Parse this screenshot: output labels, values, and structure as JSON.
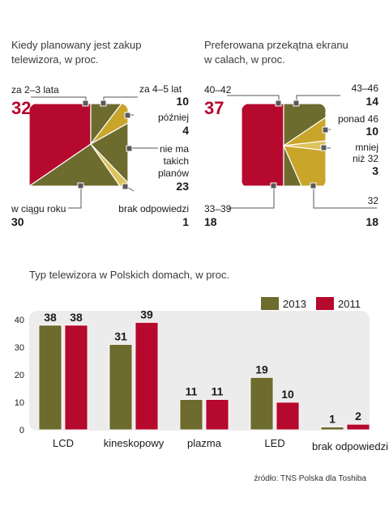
{
  "colors": {
    "olive": "#6e6b2e",
    "red": "#b5092d",
    "gold": "#c9a52a",
    "gold_light": "#dcc25a",
    "panel": "#ececec"
  },
  "source": "źródło: TNS Polska dla Toshiba",
  "chart_data": [
    {
      "type": "pie",
      "title": "Kiedy planowany jest zakup telewizora, w proc.",
      "title_lines": [
        "Kiedy planowany jest zakup",
        "telewizora, w proc."
      ],
      "slices": [
        {
          "label": "za 2–3 lata",
          "value": 32,
          "display": "32"
        },
        {
          "label": "za 4–5 lat",
          "value": 10,
          "display": "10"
        },
        {
          "label": "później",
          "value": 4,
          "display": "4"
        },
        {
          "label": "nie ma takich planów",
          "label_lines": [
            "nie ma",
            "takich",
            "planów"
          ],
          "value": 23,
          "display": "23"
        },
        {
          "label": "brak odpowiedzi",
          "value": 1,
          "display": "1"
        },
        {
          "label": "w ciągu roku",
          "value": 30,
          "display": "30"
        }
      ]
    },
    {
      "type": "pie",
      "title": "Preferowana przekątna ekranu w calach, w proc.",
      "title_lines": [
        "Preferowana przekątna ekranu",
        "w calach, w proc."
      ],
      "slices": [
        {
          "label": "40–42",
          "value": 37,
          "display": "37"
        },
        {
          "label": "43–46",
          "value": 14,
          "display": "14"
        },
        {
          "label": "ponad 46",
          "value": 10,
          "display": "10"
        },
        {
          "label": "mniej niż 32",
          "label_lines": [
            "mniej",
            "niż 32"
          ],
          "value": 3,
          "display": "3"
        },
        {
          "label": "32",
          "value": 18,
          "display": "18"
        },
        {
          "label": "33–39",
          "value": 18,
          "display": "18"
        }
      ]
    },
    {
      "type": "bar",
      "title": "Typ telewizora w Polskich domach, w proc.",
      "categories": [
        "LCD",
        "kineskopowy",
        "plazma",
        "LED",
        "brak odpowiedzi"
      ],
      "series": [
        {
          "name": "2013",
          "values": [
            38,
            31,
            11,
            19,
            1
          ]
        },
        {
          "name": "2011",
          "values": [
            38,
            39,
            11,
            10,
            2
          ]
        }
      ],
      "ylim": [
        0,
        40
      ],
      "yticks": [
        0,
        10,
        20,
        30,
        40
      ],
      "grid": false,
      "legend": "top-right"
    }
  ]
}
